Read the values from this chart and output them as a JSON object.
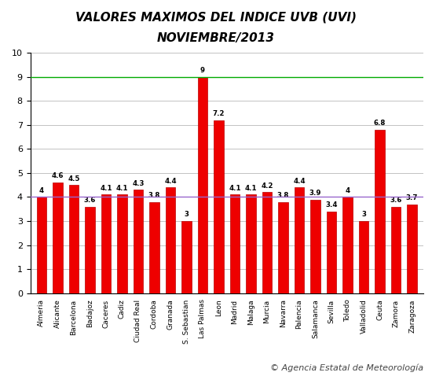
{
  "title_line1": "VALORES MAXIMOS DEL INDICE UVB (UVI)",
  "title_line2": "NOVIEMBRE/2013",
  "categories": [
    "Almeria",
    "Alicante",
    "Barcelona",
    "Badajoz",
    "Caceres",
    "Cadiz",
    "Ciudad Real",
    "Cordoba",
    "Granada",
    "S. Sebastian",
    "Las Palmas",
    "Leon",
    "Madrid",
    "Malaga",
    "Murcia",
    "Navarra",
    "Palencia",
    "Salamanca",
    "Sevilla",
    "Toledo",
    "Valladolid",
    "Ceuta",
    "Zamora",
    "Zaragoza"
  ],
  "values": [
    4.0,
    4.6,
    4.5,
    3.6,
    4.1,
    4.1,
    4.3,
    3.8,
    4.4,
    3.0,
    9.0,
    7.2,
    4.1,
    4.1,
    4.2,
    3.8,
    4.4,
    3.9,
    3.4,
    4.0,
    3.0,
    6.8,
    3.6,
    3.7
  ],
  "bar_color": "#ee0000",
  "bar_edge_color": "#bb0000",
  "ylim": [
    0,
    10
  ],
  "yticks": [
    0,
    1,
    2,
    3,
    4,
    5,
    6,
    7,
    8,
    9,
    10
  ],
  "hline_color_green": "#00aa00",
  "hline_color_purple": "#9966cc",
  "hline_y_green": 9,
  "hline_y_purple": 4,
  "grid_color": "#aaaaaa",
  "background_color": "#ffffff",
  "title_fontsize": 11,
  "label_fontsize": 6.5,
  "value_fontsize": 6.2,
  "footer_text": "© Agencia Estatal de Meteorología",
  "footer_fontsize": 8
}
